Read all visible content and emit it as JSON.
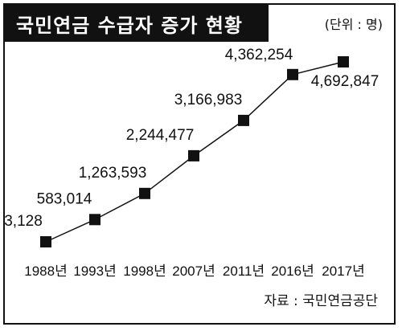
{
  "header": {
    "title": "국민연금 수급자 증가 현황",
    "unit": "(단위 : 명)"
  },
  "source": "자료 : 국민연금공단",
  "colors": {
    "line": "#111111",
    "marker": "#111111",
    "title_bg": "#111111"
  },
  "chart_data": {
    "type": "line",
    "title": "국민연금 수급자 증가 현황",
    "categories": [
      "1988년",
      "1993년",
      "1998년",
      "2007년",
      "2011년",
      "2016년",
      "2017년"
    ],
    "series": [
      {
        "values": [
          3128,
          583014,
          1263593,
          2244477,
          3166983,
          4362254,
          4692847
        ],
        "labels": [
          "3,128",
          "583,014",
          "1,263,593",
          "2,244,477",
          "3,166,983",
          "4,362,254",
          "4,692,847"
        ]
      }
    ],
    "xlabel": "",
    "ylabel": "",
    "grid": false,
    "legend": "none"
  }
}
